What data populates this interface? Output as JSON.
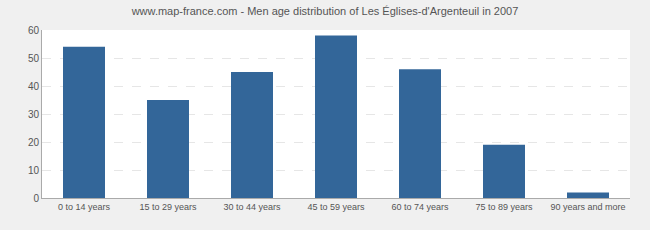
{
  "chart_data": {
    "type": "bar",
    "title": "www.map-france.com - Men age distribution of Les Églises-d'Argenteuil in 2007",
    "categories": [
      "0 to 14 years",
      "15 to 29 years",
      "30 to 44 years",
      "45 to 59 years",
      "60 to 74 years",
      "75 to 89 years",
      "90 years and more"
    ],
    "values": [
      54,
      35,
      45,
      58,
      46,
      19,
      2
    ],
    "color": "#336699",
    "ylim": [
      0,
      60
    ],
    "yticks": [
      0,
      10,
      20,
      30,
      40,
      50,
      60
    ],
    "grid": true
  }
}
